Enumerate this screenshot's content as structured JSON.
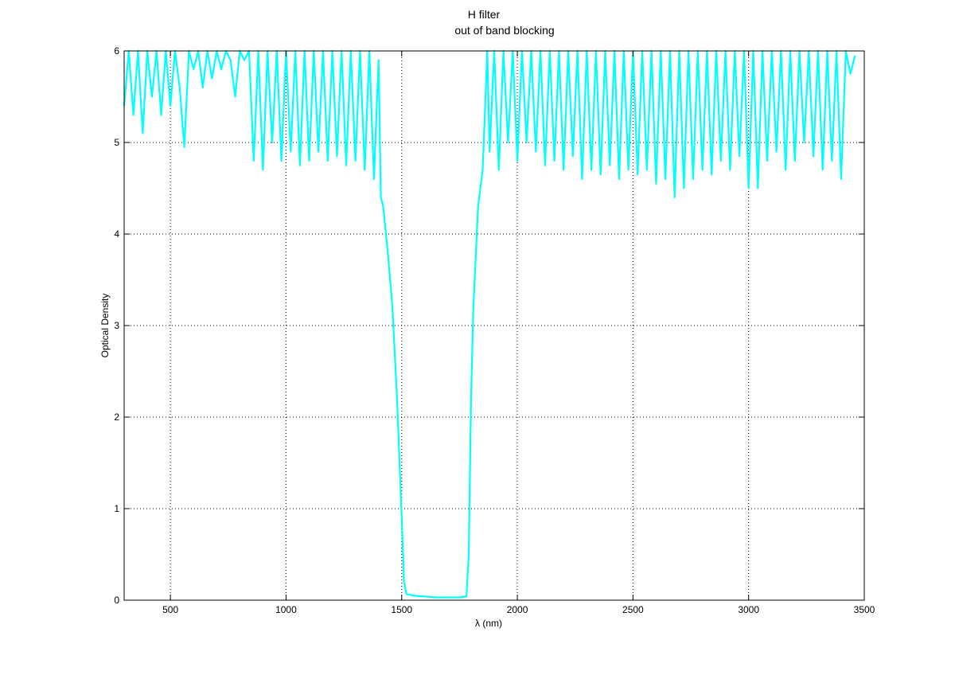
{
  "chart_data": {
    "type": "line",
    "title": [
      "H filter",
      "out of band blocking"
    ],
    "xlabel": "λ (nm)",
    "ylabel": "Optical Density",
    "xlim": [
      300,
      3500
    ],
    "ylim": [
      0,
      6
    ],
    "xticks": [
      500,
      1000,
      1500,
      2000,
      2500,
      3000,
      3500
    ],
    "yticks": [
      0,
      1,
      2,
      3,
      4,
      5,
      6
    ],
    "grid": true,
    "line_color": "#00FFFF",
    "series": [
      {
        "x": [
          300,
          320,
          340,
          360,
          380,
          400,
          420,
          440,
          460,
          480,
          500,
          520,
          540,
          560,
          580,
          600,
          620,
          640,
          660,
          680,
          700,
          720,
          740,
          760,
          780,
          800,
          820,
          840,
          860,
          880,
          900,
          920,
          940,
          960,
          980,
          1000,
          1020,
          1040,
          1060,
          1080,
          1100,
          1120,
          1140,
          1160,
          1180,
          1200,
          1220,
          1240,
          1260,
          1280,
          1300,
          1320,
          1340,
          1360,
          1380,
          1400,
          1410,
          1420,
          1440,
          1460,
          1480,
          1500,
          1510,
          1520,
          1550,
          1600,
          1650,
          1700,
          1750,
          1780,
          1790,
          1800,
          1810,
          1830,
          1850,
          1870,
          1880,
          1900,
          1920,
          1940,
          1960,
          1980,
          2000,
          2020,
          2040,
          2060,
          2080,
          2100,
          2120,
          2140,
          2160,
          2180,
          2200,
          2220,
          2240,
          2260,
          2280,
          2300,
          2320,
          2340,
          2360,
          2380,
          2400,
          2420,
          2440,
          2460,
          2480,
          2500,
          2520,
          2540,
          2560,
          2580,
          2600,
          2620,
          2640,
          2660,
          2680,
          2700,
          2720,
          2740,
          2760,
          2780,
          2800,
          2820,
          2840,
          2860,
          2880,
          2900,
          2920,
          2940,
          2960,
          2980,
          3000,
          3020,
          3040,
          3060,
          3080,
          3100,
          3120,
          3140,
          3160,
          3180,
          3200,
          3220,
          3240,
          3260,
          3280,
          3300,
          3320,
          3340,
          3360,
          3380,
          3400,
          3420,
          3440,
          3460
        ],
        "y": [
          5.4,
          6,
          5.3,
          6,
          5.1,
          6,
          5.5,
          6,
          5.3,
          6,
          5.4,
          6,
          5.6,
          4.95,
          6,
          5.8,
          6,
          5.6,
          6,
          5.7,
          6,
          5.8,
          6,
          5.9,
          5.5,
          6,
          5.9,
          6,
          4.8,
          6,
          4.7,
          6,
          5.0,
          6,
          4.8,
          6,
          4.9,
          6,
          4.75,
          6,
          4.8,
          6,
          4.9,
          6,
          4.8,
          6,
          4.85,
          6,
          4.75,
          6,
          4.8,
          6,
          4.7,
          6,
          4.6,
          5.9,
          4.4,
          4.3,
          3.8,
          3.2,
          2.2,
          0.9,
          0.2,
          0.07,
          0.05,
          0.04,
          0.03,
          0.03,
          0.03,
          0.04,
          0.5,
          2.2,
          3.2,
          4.3,
          4.7,
          6,
          4.9,
          6,
          4.7,
          6,
          5.0,
          6,
          4.8,
          6,
          5.0,
          6,
          4.9,
          6,
          4.75,
          6,
          4.8,
          6,
          4.7,
          6,
          4.85,
          6,
          4.6,
          6,
          4.7,
          6,
          4.65,
          6,
          4.75,
          6,
          4.6,
          6,
          4.7,
          6,
          4.65,
          6,
          4.7,
          6,
          4.55,
          6,
          4.6,
          6,
          4.4,
          6,
          4.5,
          6,
          4.6,
          6,
          4.7,
          6,
          4.65,
          6,
          4.8,
          6,
          4.7,
          6,
          4.85,
          6,
          4.5,
          6,
          4.5,
          6,
          4.8,
          6,
          4.9,
          6,
          4.7,
          6,
          4.8,
          6,
          5.0,
          6,
          4.85,
          6,
          4.7,
          6,
          4.8,
          6,
          4.6,
          6,
          5.75,
          5.95
        ]
      }
    ]
  }
}
